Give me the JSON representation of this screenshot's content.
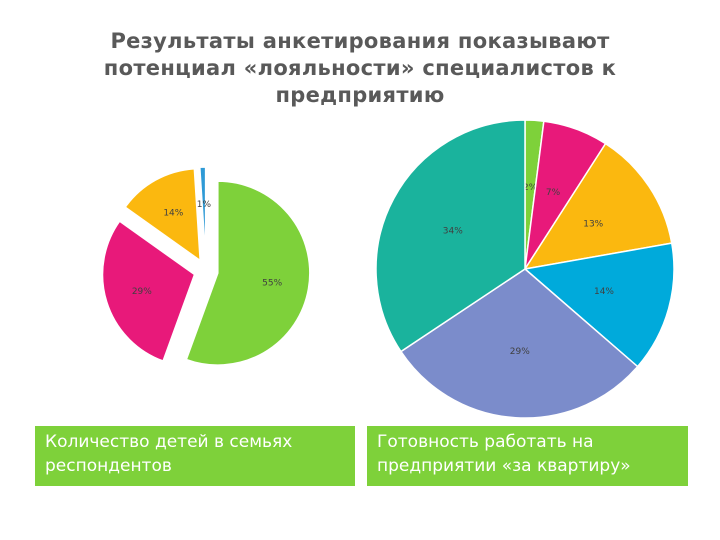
{
  "title": {
    "lines": [
      "Результаты анкетирования показывают",
      "потенциал «лояльности» специалистов к",
      "предприятию"
    ]
  },
  "captions": {
    "left": [
      "Количество детей в семьях",
      "респондентов"
    ],
    "right": [
      "Готовность работать на",
      "предприятии «за квартиру»"
    ]
  },
  "chart_data": [
    {
      "type": "pie",
      "title": "",
      "exploded": true,
      "start_angle_deg": 90,
      "direction": "clockwise",
      "labels": [
        "55%",
        "29%",
        "14%",
        "1%"
      ],
      "values": [
        55,
        29,
        14,
        1
      ],
      "colors": [
        "#7ed13a",
        "#e8197a",
        "#fbb80f",
        "#2e9ad6"
      ]
    },
    {
      "type": "pie",
      "title": "",
      "exploded": false,
      "start_angle_deg": 90,
      "direction": "clockwise",
      "labels": [
        "2%",
        "7%",
        "13%",
        "14%",
        "29%",
        "34%"
      ],
      "values": [
        2,
        7,
        13,
        14,
        29,
        34
      ],
      "colors": [
        "#7ed13a",
        "#e8197a",
        "#fbb80f",
        "#00aadb",
        "#7b8ccb",
        "#1ab39d"
      ]
    }
  ]
}
